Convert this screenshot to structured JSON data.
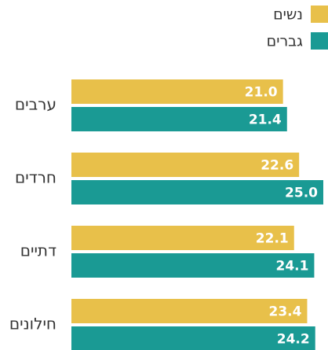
{
  "chart_data": {
    "type": "bar",
    "orientation": "horizontal",
    "categories": [
      "ערבים",
      "חרדים",
      "דתיים",
      "חילונים"
    ],
    "series": [
      {
        "name": "נשים",
        "color": "#e8c04a",
        "values": [
          21.0,
          22.6,
          22.1,
          23.4
        ],
        "value_labels": [
          "21.0",
          "22.6",
          "22.1",
          "23.4"
        ]
      },
      {
        "name": "גברים",
        "color": "#1a9a94",
        "values": [
          21.4,
          25.0,
          24.1,
          24.2
        ],
        "value_labels": [
          "21.4",
          "25.0",
          "24.1",
          "24.2"
        ]
      }
    ],
    "legend": "top-right"
  }
}
